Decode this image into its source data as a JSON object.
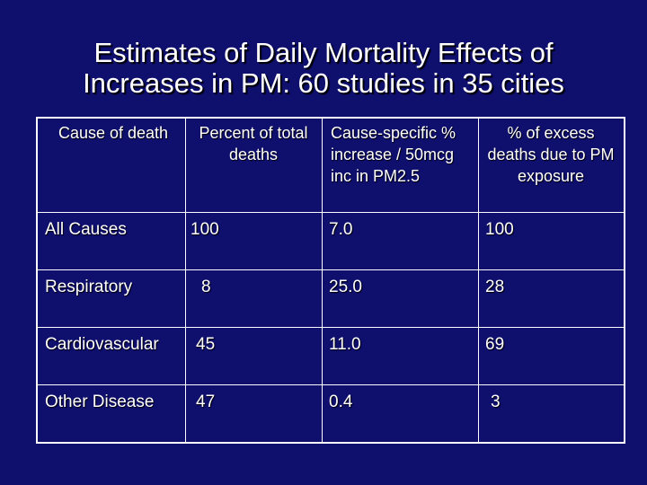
{
  "title": {
    "line1": "Estimates of Daily Mortality Effects of",
    "line2": "Increases in PM: 60 studies in 35 cities"
  },
  "table": {
    "headers": [
      "Cause of death",
      "Percent of total deaths",
      "Cause-specific % increase / 50mcg inc in PM2.5",
      "% of excess deaths due to PM exposure"
    ],
    "rows": [
      {
        "cause": "All Causes",
        "percent_total": "100",
        "increase": "7.0",
        "excess": "100"
      },
      {
        "cause": "Respiratory",
        "percent_total": "8",
        "increase": "25.0",
        "excess": "28"
      },
      {
        "cause": "Cardiovascular",
        "percent_total": "45",
        "increase": "11.0",
        "excess": "69"
      },
      {
        "cause": "Other Disease",
        "percent_total": "47",
        "increase": "0.4",
        "excess": "3"
      }
    ]
  },
  "colors": {
    "background": "#0f0f6e",
    "text": "#ffffff",
    "gridline": "#ffffff"
  }
}
